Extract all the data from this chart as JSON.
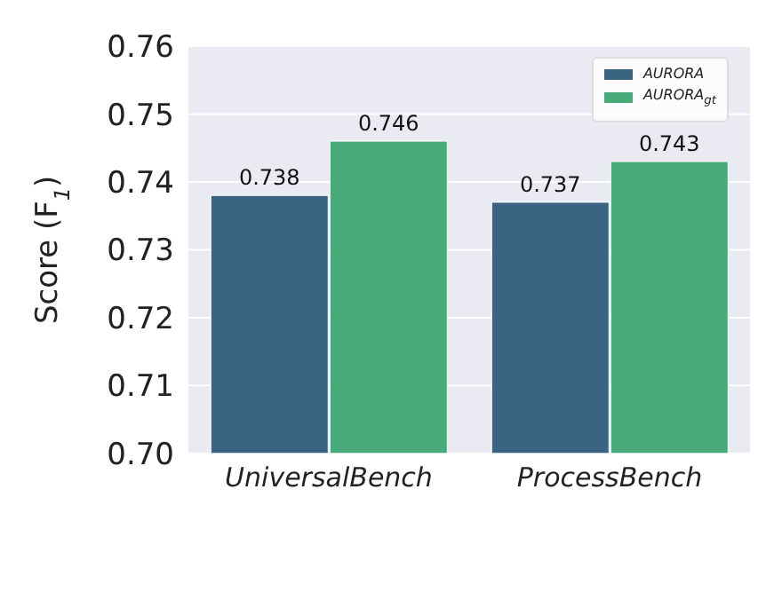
{
  "chart_data": {
    "type": "bar",
    "ylabel": "Score (F$_{1}$)",
    "categories": [
      "UniversalBench",
      "ProcessBench"
    ],
    "series": [
      {
        "name": "AURORA",
        "color": "#3b6482",
        "values": [
          0.738,
          0.737
        ]
      },
      {
        "name": "AURORA$_{gt}$",
        "color": "#48aa78",
        "values": [
          0.746,
          0.743
        ]
      }
    ],
    "ylim": [
      0.7,
      0.76
    ],
    "yticks": [
      {
        "value": 0.7,
        "label": "0.70"
      },
      {
        "value": 0.71,
        "label": "0.71"
      },
      {
        "value": 0.72,
        "label": "0.72"
      },
      {
        "value": 0.73,
        "label": "0.73"
      },
      {
        "value": 0.74,
        "label": "0.74"
      },
      {
        "value": 0.75,
        "label": "0.75"
      },
      {
        "value": 0.76,
        "label": "0.76"
      }
    ],
    "grid": "y",
    "legend": "top right",
    "data_labels": true
  }
}
